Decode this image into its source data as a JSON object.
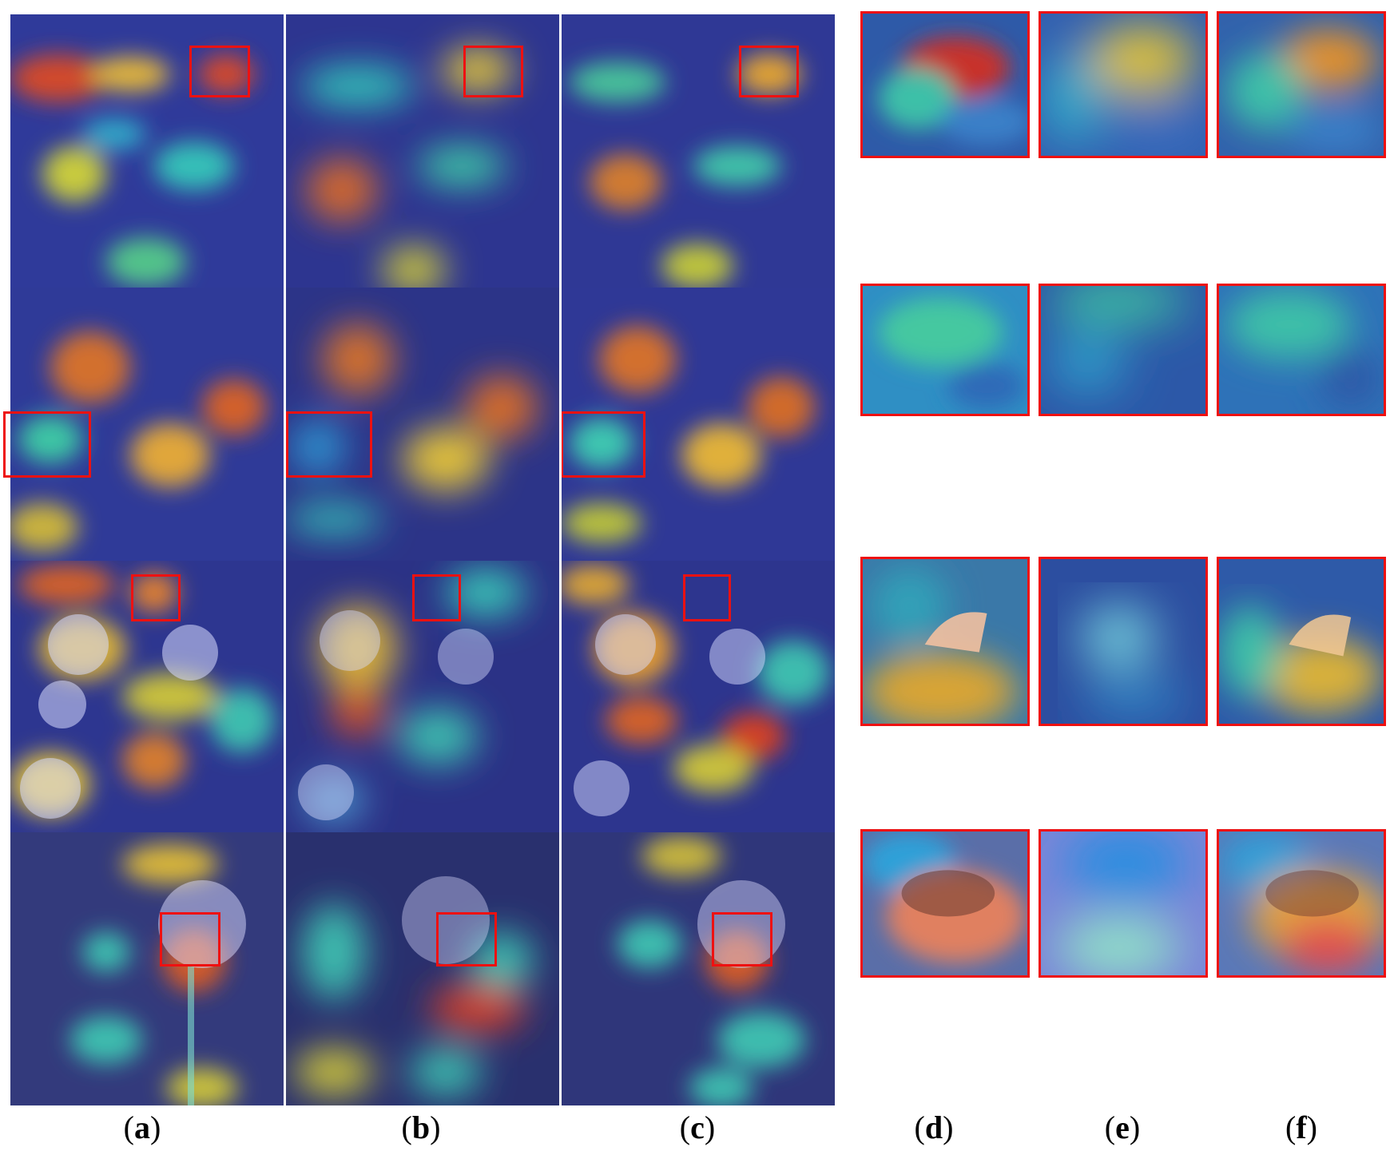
{
  "labels": {
    "a": {
      "open": "(",
      "letter": "a",
      "close": ")"
    },
    "b": {
      "open": "(",
      "letter": "b",
      "close": ")"
    },
    "c": {
      "open": "(",
      "letter": "c",
      "close": ")"
    },
    "d": {
      "open": "(",
      "letter": "d",
      "close": ")"
    },
    "e": {
      "open": "(",
      "letter": "e",
      "close": ")"
    },
    "f": {
      "open": "(",
      "letter": "f",
      "close": ")"
    }
  },
  "colors": {
    "highlight_box": "#ee1111",
    "heatmap_low": "#2a2f9e",
    "heatmap_mid": "#26c6c8",
    "heatmap_high": "#e8302a"
  },
  "rows": [
    {
      "scene": "flower-field-top-view"
    },
    {
      "scene": "sunflower-field"
    },
    {
      "scene": "daisy-cluster"
    },
    {
      "scene": "single-daisy"
    }
  ]
}
